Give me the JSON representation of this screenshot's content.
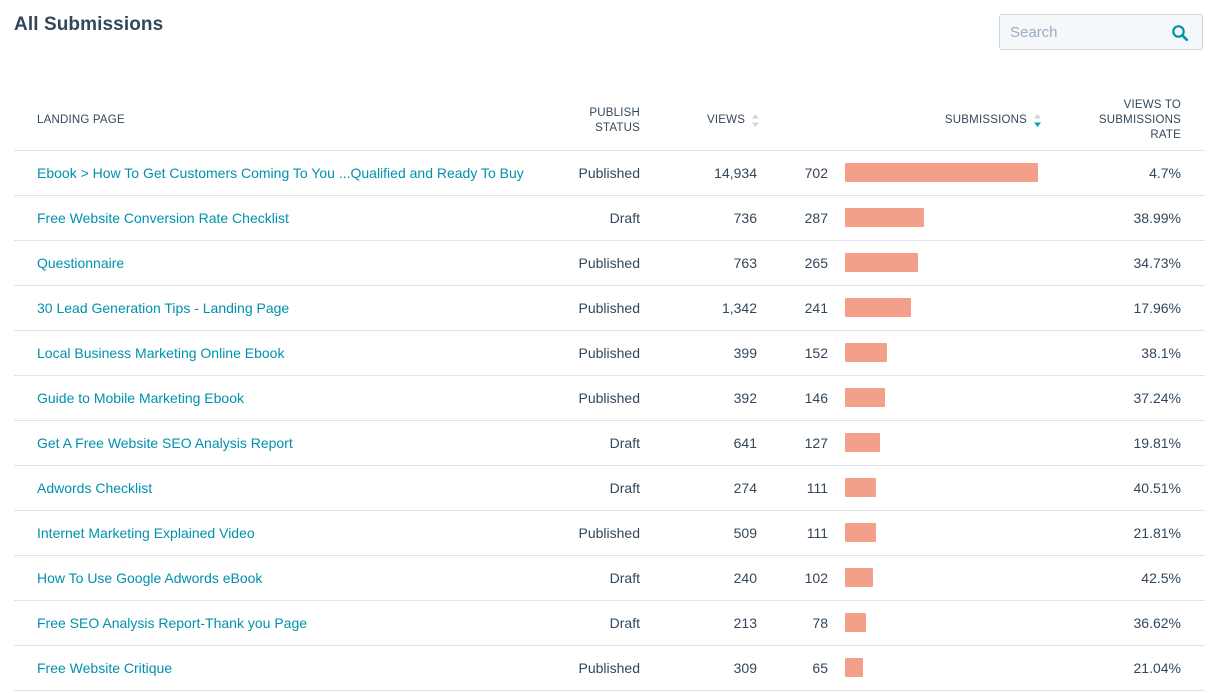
{
  "header": {
    "title": "All Submissions",
    "search_placeholder": "Search"
  },
  "table": {
    "columns": {
      "landing_page": "LANDING PAGE",
      "publish_status_line1": "PUBLISH",
      "publish_status_line2": "STATUS",
      "views": "VIEWS",
      "submissions": "SUBMISSIONS",
      "rate_line1": "VIEWS TO",
      "rate_line2": "SUBMISSIONS",
      "rate_line3": "RATE"
    },
    "max_submissions": 702,
    "rows": [
      {
        "landing_page": "Ebook > How To Get Customers Coming To You ...Qualified and Ready To Buy",
        "status": "Published",
        "views": "14,934",
        "submissions": "702",
        "submissions_value": 702,
        "rate": "4.7%"
      },
      {
        "landing_page": "Free Website Conversion Rate Checklist",
        "status": "Draft",
        "views": "736",
        "submissions": "287",
        "submissions_value": 287,
        "rate": "38.99%"
      },
      {
        "landing_page": "Questionnaire",
        "status": "Published",
        "views": "763",
        "submissions": "265",
        "submissions_value": 265,
        "rate": "34.73%"
      },
      {
        "landing_page": "30 Lead Generation Tips - Landing Page",
        "status": "Published",
        "views": "1,342",
        "submissions": "241",
        "submissions_value": 241,
        "rate": "17.96%"
      },
      {
        "landing_page": "Local Business Marketing Online Ebook",
        "status": "Published",
        "views": "399",
        "submissions": "152",
        "submissions_value": 152,
        "rate": "38.1%"
      },
      {
        "landing_page": "Guide to Mobile Marketing Ebook",
        "status": "Published",
        "views": "392",
        "submissions": "146",
        "submissions_value": 146,
        "rate": "37.24%"
      },
      {
        "landing_page": "Get A Free Website SEO Analysis Report",
        "status": "Draft",
        "views": "641",
        "submissions": "127",
        "submissions_value": 127,
        "rate": "19.81%"
      },
      {
        "landing_page": "Adwords Checklist",
        "status": "Draft",
        "views": "274",
        "submissions": "111",
        "submissions_value": 111,
        "rate": "40.51%"
      },
      {
        "landing_page": "Internet Marketing Explained Video",
        "status": "Published",
        "views": "509",
        "submissions": "111",
        "submissions_value": 111,
        "rate": "21.81%"
      },
      {
        "landing_page": "How To Use Google Adwords eBook",
        "status": "Draft",
        "views": "240",
        "submissions": "102",
        "submissions_value": 102,
        "rate": "42.5%"
      },
      {
        "landing_page": "Free SEO Analysis Report-Thank you Page",
        "status": "Draft",
        "views": "213",
        "submissions": "78",
        "submissions_value": 78,
        "rate": "36.62%"
      },
      {
        "landing_page": "Free Website Critique",
        "status": "Published",
        "views": "309",
        "submissions": "65",
        "submissions_value": 65,
        "rate": "21.04%"
      }
    ]
  },
  "colors": {
    "bar": "#f2a08a",
    "link": "#0091ae",
    "text": "#33475b",
    "sort_active": "#00a4bd",
    "sort_inactive": "#cbd6e2"
  },
  "icons": {
    "search": "search-icon",
    "views_sort": "sort-icon",
    "submissions_sort": "sort-descending-icon"
  }
}
